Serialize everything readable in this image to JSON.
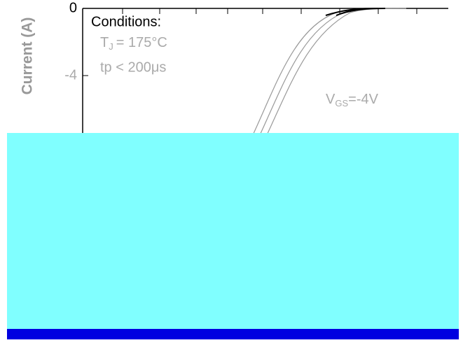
{
  "chart_data": {
    "type": "line",
    "y_label": "Current (A)",
    "ylim": [
      -8,
      0
    ],
    "yticks": [
      0,
      -4
    ],
    "annotations": {
      "conditions": "Conditions:",
      "tj": "T",
      "tj_sub": "J",
      "tj_value": "= 175°C",
      "tp": "tp < 200μs",
      "vgs": "V",
      "vgs_sub": "GS",
      "vgs_value": "=-4V"
    }
  }
}
